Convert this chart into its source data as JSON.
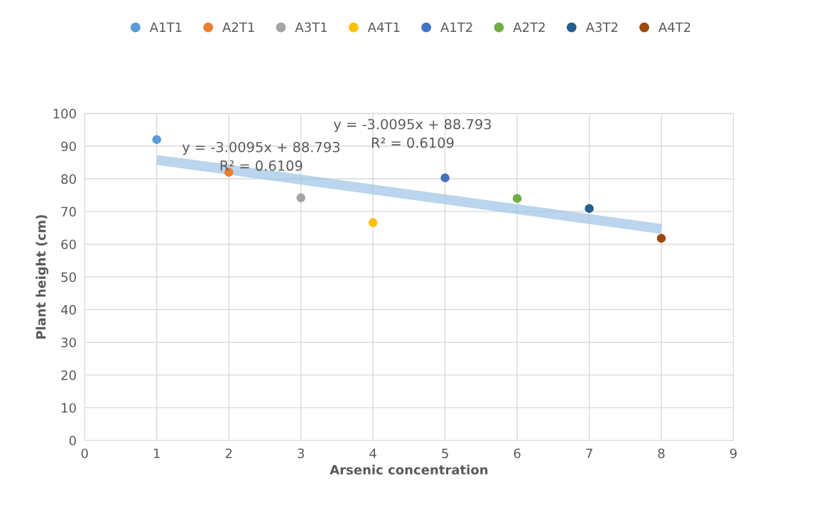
{
  "chart_data": {
    "type": "scatter",
    "xlabel": "Arsenic concentration",
    "ylabel": "Plant height (cm)",
    "xlim": [
      0,
      9
    ],
    "xticks": [
      0,
      1,
      2,
      3,
      4,
      5,
      6,
      7,
      8,
      9
    ],
    "ylim": [
      0,
      100
    ],
    "yticks": [
      0,
      10,
      20,
      30,
      40,
      50,
      60,
      70,
      80,
      90,
      100
    ],
    "grid": true,
    "legend": "top",
    "marker": "circle",
    "series": [
      {
        "name": "A1T1",
        "color": "#5b9bd5",
        "x": [
          1
        ],
        "values": [
          92.0
        ]
      },
      {
        "name": "A2T1",
        "color": "#ed7d31",
        "x": [
          2
        ],
        "values": [
          82.0
        ]
      },
      {
        "name": "A3T1",
        "color": "#a5a5a5",
        "x": [
          3
        ],
        "values": [
          74.2
        ]
      },
      {
        "name": "A4T1",
        "color": "#ffc000",
        "x": [
          4
        ],
        "values": [
          66.6
        ]
      },
      {
        "name": "A1T2",
        "color": "#4472c4",
        "x": [
          5
        ],
        "values": [
          80.3
        ]
      },
      {
        "name": "A2T2",
        "color": "#70ad47",
        "x": [
          6
        ],
        "values": [
          74.0
        ]
      },
      {
        "name": "A3T2",
        "color": "#255e91",
        "x": [
          7
        ],
        "values": [
          70.9
        ]
      },
      {
        "name": "A4T2",
        "color": "#9e480e",
        "x": [
          8
        ],
        "values": [
          61.8
        ]
      },
      {
        "type": "line",
        "color": "#9dc3e6",
        "marker": "none",
        "x": [
          1,
          8
        ],
        "values": [
          85.8,
          64.7
        ]
      }
    ],
    "annotations": [
      "y = -3.0095x + 88.793\nR² = 0.6109",
      "y = -3.0095x + 88.793\nR² = 0.6109"
    ]
  }
}
